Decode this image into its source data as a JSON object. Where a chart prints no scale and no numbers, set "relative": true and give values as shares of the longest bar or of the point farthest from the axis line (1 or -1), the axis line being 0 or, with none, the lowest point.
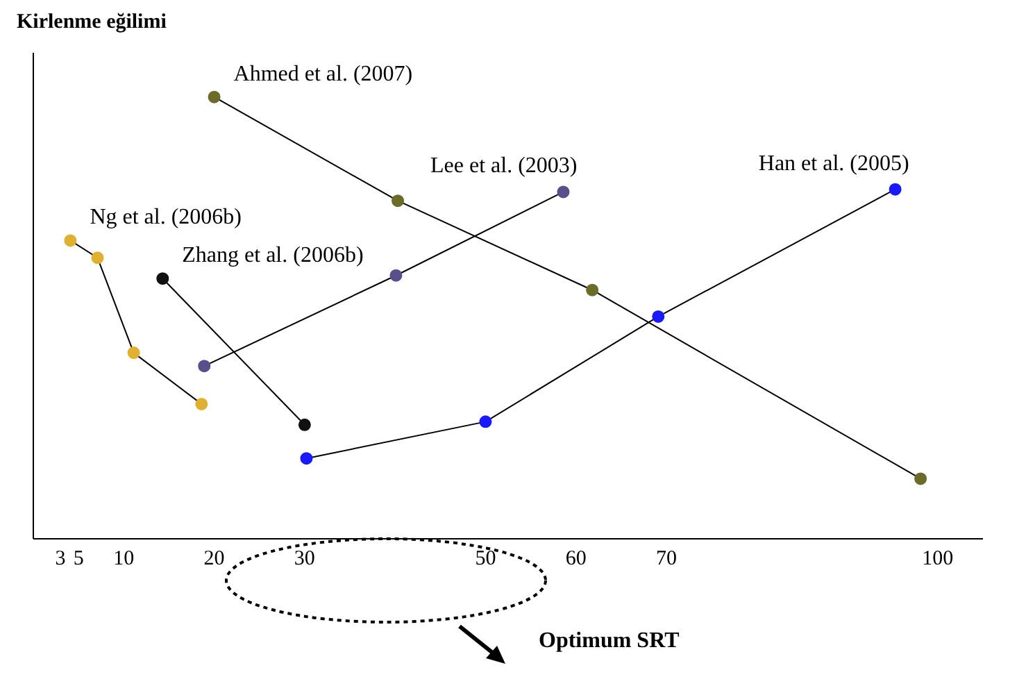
{
  "chart_data": {
    "type": "line",
    "ylabel": "Kirlenme eğilimi",
    "relative": true,
    "marker": "circle",
    "xlim": [
      0,
      105
    ],
    "xticks": [
      3,
      5,
      10,
      20,
      30,
      50,
      60,
      70,
      100
    ],
    "series": [
      {
        "name": "Ng et al. (2006b)",
        "color": "#e0b030",
        "x": [
          4.1,
          7.1,
          11.1,
          18.6
        ],
        "values": [
          0.675,
          0.636,
          0.421,
          0.305
        ]
      },
      {
        "name": "Zhang et al. (2006b)",
        "color": "#111111",
        "x": [
          14.3,
          30
        ],
        "values": [
          0.589,
          0.258
        ]
      },
      {
        "name": "Ahmed et al. (2007)",
        "color": "#6b6b2a",
        "x": [
          20,
          40.3,
          61.8,
          98.1
        ],
        "values": [
          1.0,
          0.765,
          0.563,
          0.136
        ]
      },
      {
        "name": "Lee et al. (2003)",
        "color": "#5a4f8a",
        "x": [
          18.9,
          40.1,
          58.6
        ],
        "values": [
          0.391,
          0.596,
          0.785
        ]
      },
      {
        "name": "Han et al. (2005)",
        "color": "#1a1aff",
        "x": [
          30.2,
          50,
          69.1,
          95.3
        ],
        "values": [
          0.182,
          0.265,
          0.503,
          0.791
        ]
      }
    ],
    "annotations": [
      "Optimum SRT"
    ]
  }
}
